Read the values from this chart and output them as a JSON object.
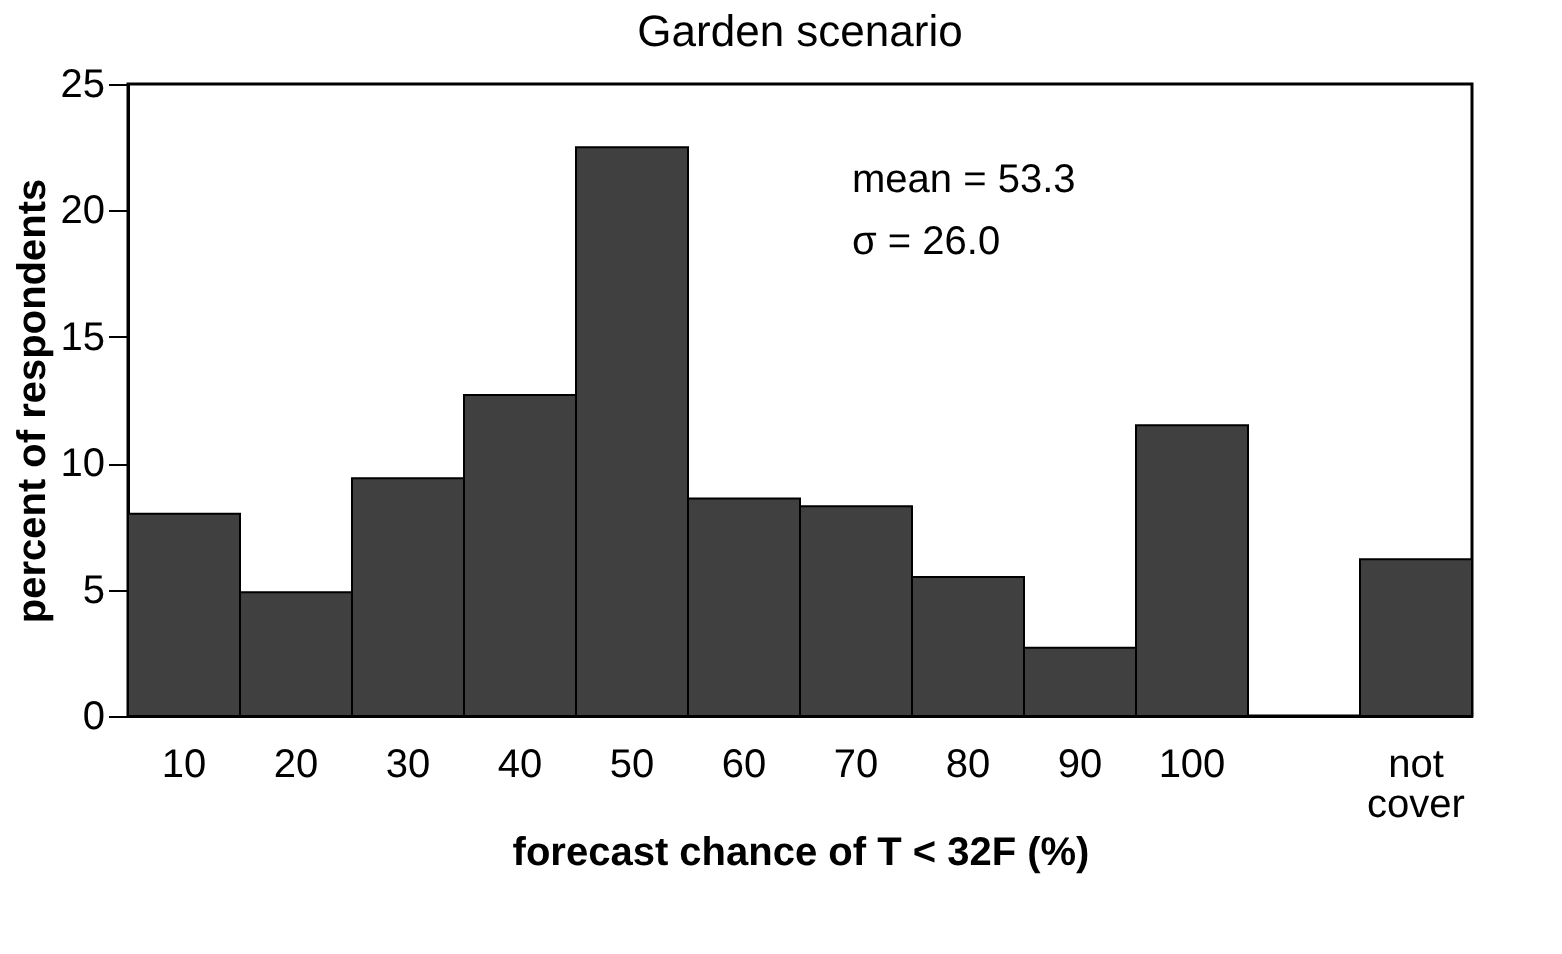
{
  "chart_data": {
    "type": "bar",
    "title": "Garden scenario",
    "xlabel": "forecast chance of T < 32F (%)",
    "ylabel": "percent of respondents",
    "categories": [
      "10",
      "20",
      "30",
      "40",
      "50",
      "60",
      "70",
      "80",
      "90",
      "100",
      null,
      "not cover"
    ],
    "values": [
      8.0,
      4.9,
      9.4,
      12.7,
      22.5,
      8.6,
      8.3,
      5.5,
      2.7,
      11.5,
      null,
      6.2
    ],
    "color": "#404040",
    "ylim": [
      0,
      25
    ],
    "yticks": [
      0,
      5,
      10,
      15,
      20,
      25
    ],
    "grid": false,
    "annotations": [
      "mean = 53.3",
      "σ = 26.0"
    ]
  }
}
